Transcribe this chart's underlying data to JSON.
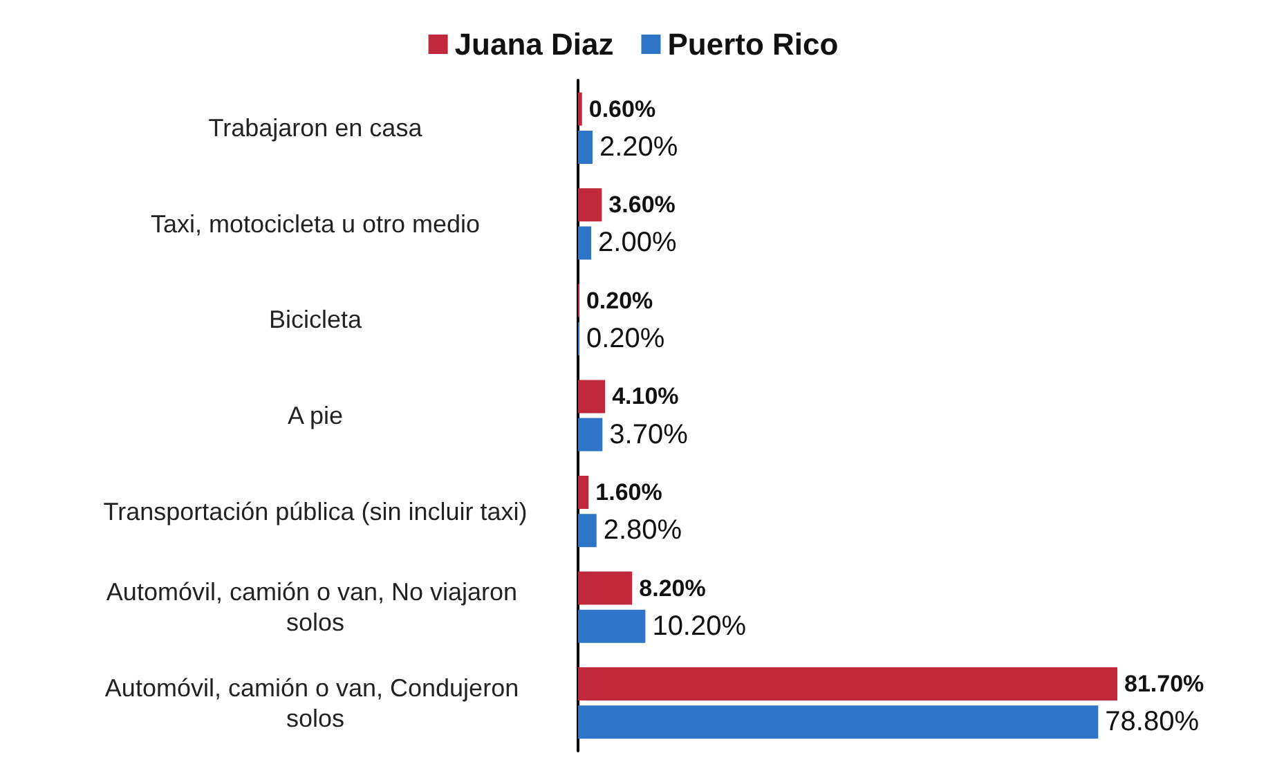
{
  "chart_data": {
    "type": "bar",
    "orientation": "horizontal",
    "legend": "top",
    "categories": [
      "Trabajaron en casa",
      "Taxi, motocicleta u otro medio",
      "Bicicleta",
      "A pie",
      "Transportación pública (sin incluir taxi)",
      "Automóvil, camión o van, No viajaron solos",
      "Automóvil, camión o van, Condujeron solos"
    ],
    "series": [
      {
        "name": "Juana Diaz",
        "color": "#c0283c",
        "values": [
          0.6,
          3.6,
          0.2,
          4.1,
          1.6,
          8.2,
          81.7
        ],
        "value_labels": [
          "0.60%",
          "3.60%",
          "0.20%",
          "4.10%",
          "1.60%",
          "8.20%",
          "81.70%"
        ]
      },
      {
        "name": "Puerto Rico",
        "color": "#2e75c8",
        "values": [
          2.2,
          2.0,
          0.2,
          3.7,
          2.8,
          10.2,
          78.8
        ],
        "value_labels": [
          "2.20%",
          "2.00%",
          "0.20%",
          "3.70%",
          "2.80%",
          "10.20%",
          "78.80%"
        ]
      }
    ]
  }
}
